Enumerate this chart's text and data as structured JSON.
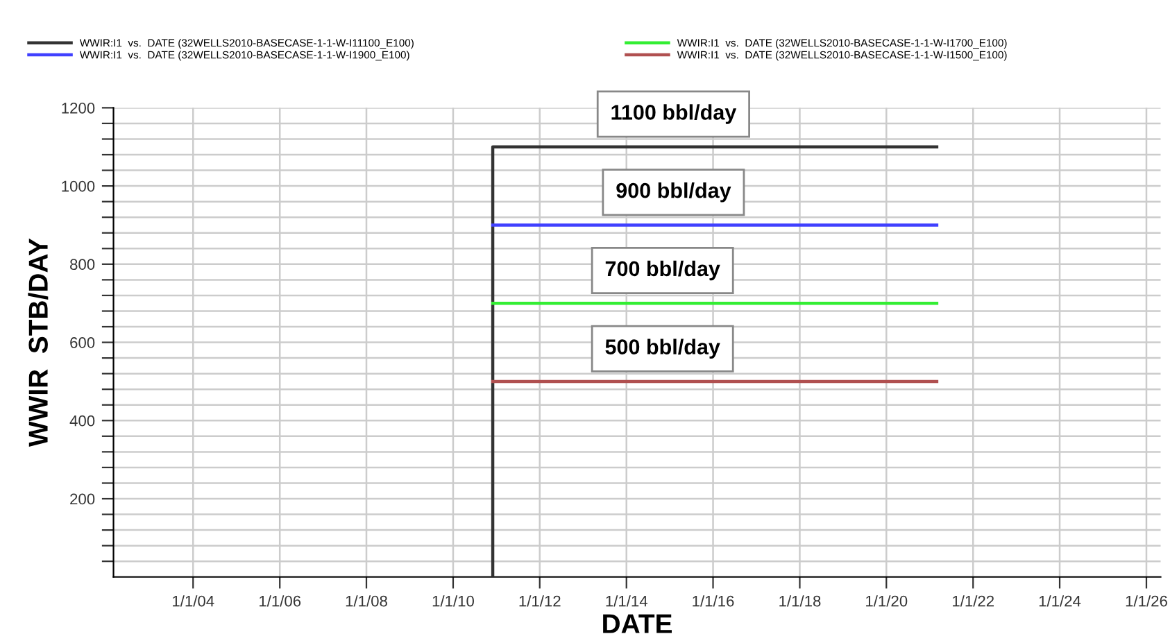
{
  "chart_data": {
    "type": "line",
    "xlabel": "DATE",
    "ylabel": "WWIR  STB/DAY",
    "series": [
      {
        "name": "WWIR:I1  vs.  DATE (32WELLS2010-BASECASE-1-1-W-I11100_E100)",
        "color": "#333333",
        "x": [
          "2010-12-01",
          "2010-12-01",
          "2021-03-01"
        ],
        "values": [
          0,
          1100,
          1100
        ]
      },
      {
        "name": "WWIR:I1  vs.  DATE (32WELLS2010-BASECASE-1-1-W-I1900_E100)",
        "color": "#4040ff",
        "x": [
          "2010-12-01",
          "2021-03-01"
        ],
        "values": [
          900,
          900
        ]
      },
      {
        "name": "WWIR:I1  vs.  DATE (32WELLS2010-BASECASE-1-1-W-I1700_E100)",
        "color": "#33ee33",
        "x": [
          "2010-12-01",
          "2021-03-01"
        ],
        "values": [
          700,
          700
        ]
      },
      {
        "name": "WWIR:I1  vs.  DATE (32WELLS2010-BASECASE-1-1-W-I1500_E100)",
        "color": "#b05050",
        "x": [
          "2010-12-01",
          "2021-03-01"
        ],
        "values": [
          500,
          500
        ]
      }
    ],
    "annotations": [
      {
        "text": "1100 bbl/day",
        "x": "2015-02-01",
        "y": 1100
      },
      {
        "text": "900 bbl/day",
        "x": "2015-02-01",
        "y": 900
      },
      {
        "text": "700 bbl/day",
        "x": "2014-11-01",
        "y": 700
      },
      {
        "text": "500 bbl/day",
        "x": "2014-11-01",
        "y": 500
      }
    ],
    "xlim": [
      "2002-03-01",
      "2026-05-01"
    ],
    "xticks": [
      {
        "value": "2004-01-01",
        "label": "1/1/04"
      },
      {
        "value": "2006-01-01",
        "label": "1/1/06"
      },
      {
        "value": "2008-01-01",
        "label": "1/1/08"
      },
      {
        "value": "2010-01-01",
        "label": "1/1/10"
      },
      {
        "value": "2012-01-01",
        "label": "1/1/12"
      },
      {
        "value": "2014-01-01",
        "label": "1/1/14"
      },
      {
        "value": "2016-01-01",
        "label": "1/1/16"
      },
      {
        "value": "2018-01-01",
        "label": "1/1/18"
      },
      {
        "value": "2020-01-01",
        "label": "1/1/20"
      },
      {
        "value": "2022-01-01",
        "label": "1/1/22"
      },
      {
        "value": "2024-01-01",
        "label": "1/1/24"
      },
      {
        "value": "2026-01-01",
        "label": "1/1/26"
      }
    ],
    "ylim": [
      0,
      1200
    ],
    "yticks": [
      {
        "value": 40,
        "label": null
      },
      {
        "value": 80,
        "label": null
      },
      {
        "value": 120,
        "label": null
      },
      {
        "value": 160,
        "label": null
      },
      200,
      {
        "value": 240,
        "label": null
      },
      {
        "value": 280,
        "label": null
      },
      {
        "value": 320,
        "label": null
      },
      {
        "value": 360,
        "label": null
      },
      400,
      {
        "value": 440,
        "label": null
      },
      {
        "value": 480,
        "label": null
      },
      {
        "value": 520,
        "label": null
      },
      {
        "value": 560,
        "label": null
      },
      600,
      {
        "value": 640,
        "label": null
      },
      {
        "value": 680,
        "label": null
      },
      {
        "value": 720,
        "label": null
      },
      {
        "value": 760,
        "label": null
      },
      800,
      {
        "value": 840,
        "label": null
      },
      {
        "value": 880,
        "label": null
      },
      {
        "value": 920,
        "label": null
      },
      {
        "value": 960,
        "label": null
      },
      1000,
      {
        "value": 1040,
        "label": null
      },
      {
        "value": 1080,
        "label": null
      },
      {
        "value": 1120,
        "label": null
      },
      {
        "value": 1160,
        "label": null
      },
      1200
    ],
    "grid": true,
    "legend": "top",
    "marker": "none",
    "line_style": "solid"
  }
}
